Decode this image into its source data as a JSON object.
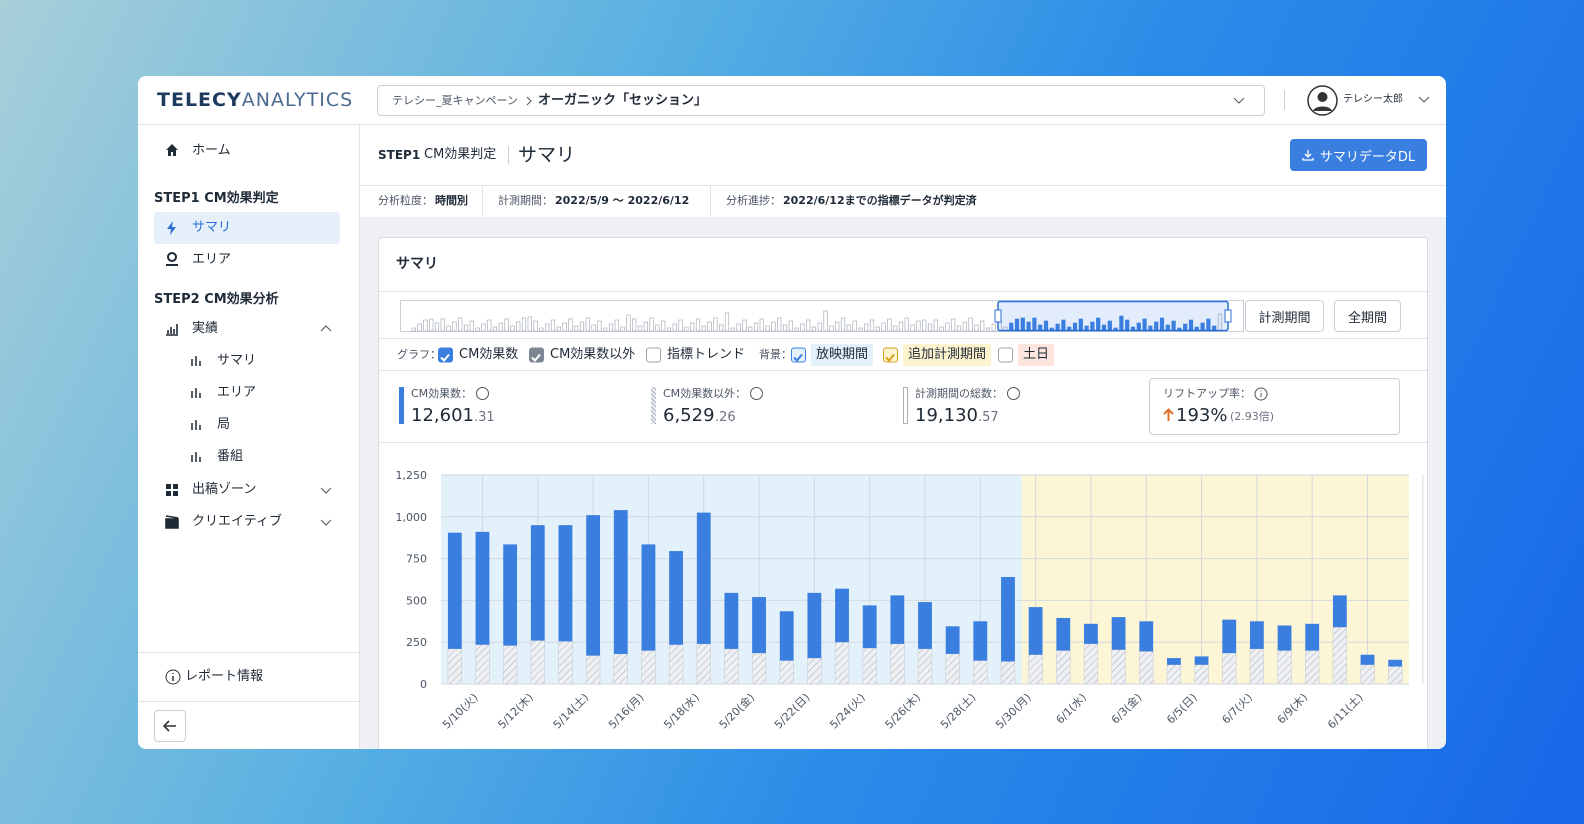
{
  "brand": {
    "part1": "TELECY",
    "part2": "ANALYTICS"
  },
  "breadcrumb": {
    "campaign": "テレシー_夏キャンペーン",
    "metric": "オーガニック「セッション」"
  },
  "user": {
    "name": "テレシー太郎"
  },
  "sidebar": {
    "home": "ホーム",
    "step1": "STEP1  CM効果判定",
    "step1_items": [
      "サマリ",
      "エリア"
    ],
    "step2": "STEP2  CM効果分析",
    "results": "実績",
    "results_items": [
      "サマリ",
      "エリア",
      "局",
      "番組"
    ],
    "zone": "出稿ゾーン",
    "creative": "クリエイティブ",
    "report": "レポート情報"
  },
  "header": {
    "step": "STEP1",
    "step_name": "CM効果判定",
    "page": "サマリ",
    "download": "サマリデータDL"
  },
  "info": [
    {
      "label": "分析粒度：",
      "value": "時間別"
    },
    {
      "label": "計測期間：",
      "value": "2022/5/9 〜 2022/6/12"
    },
    {
      "label": "分析進捗：",
      "value": "2022/6/12までの指標データが判定済"
    }
  ],
  "card": {
    "title": "サマリ",
    "range_buttons": [
      "計測期間",
      "全期間"
    ]
  },
  "options": {
    "graph_label": "グラフ：",
    "trend": {
      "label": "指標トレンド",
      "checked": false
    },
    "cm_checked": true,
    "other_checked": true,
    "bg_label": "背景：",
    "bg": [
      {
        "label": "放映期間",
        "checked": true
      },
      {
        "label": "追加計測期間",
        "checked": true
      },
      {
        "label": "土日",
        "checked": false
      }
    ]
  },
  "metrics": [
    {
      "label": "CM効果数：",
      "value": "12,601",
      "decimal": ".31"
    },
    {
      "label": "CM効果数以外：",
      "value": "6,529",
      "decimal": ".26"
    },
    {
      "label": "計測期間の総数：",
      "value": "19,130",
      "decimal": ".57"
    }
  ],
  "lift": {
    "label": "リフトアップ率：",
    "value": "193%",
    "ratio": "(2.93倍)"
  },
  "chart_data": {
    "type": "bar",
    "stacked": true,
    "categories": [
      null,
      "5/10(火)",
      null,
      "5/12(木)",
      null,
      "5/14(土)",
      null,
      "5/16(月)",
      null,
      "5/18(水)",
      null,
      "5/20(金)",
      null,
      "5/22(日)",
      null,
      "5/24(火)",
      null,
      "5/26(木)",
      null,
      "5/28(土)",
      null,
      "5/30(月)",
      null,
      "6/1(水)",
      null,
      "6/3(金)",
      null,
      "6/5(日)",
      null,
      "6/7(火)",
      null,
      "6/9(木)",
      null,
      "6/11(土)",
      null
    ],
    "series": [
      {
        "name": "CM効果数以外",
        "color": "#e4e7eb",
        "values": [
          210,
          235,
          230,
          260,
          255,
          170,
          180,
          200,
          235,
          240,
          210,
          185,
          140,
          155,
          250,
          215,
          240,
          210,
          180,
          140,
          135,
          175,
          200,
          240,
          205,
          195,
          115,
          115,
          185,
          210,
          200,
          200,
          340,
          115,
          105
        ]
      },
      {
        "name": "CM効果数",
        "color": "#3a7fe0",
        "values": [
          695,
          675,
          605,
          690,
          695,
          840,
          860,
          635,
          560,
          785,
          335,
          335,
          295,
          390,
          320,
          255,
          290,
          280,
          165,
          235,
          505,
          285,
          195,
          120,
          195,
          180,
          40,
          50,
          200,
          165,
          150,
          160,
          190,
          60,
          40
        ]
      }
    ],
    "ylim": [
      0,
      1250
    ],
    "yticks": [
      0,
      250,
      500,
      750,
      {
        "value": 1000,
        "label": "1,000"
      },
      {
        "value": 1250,
        "label": "1,250"
      }
    ],
    "grid": true
  }
}
